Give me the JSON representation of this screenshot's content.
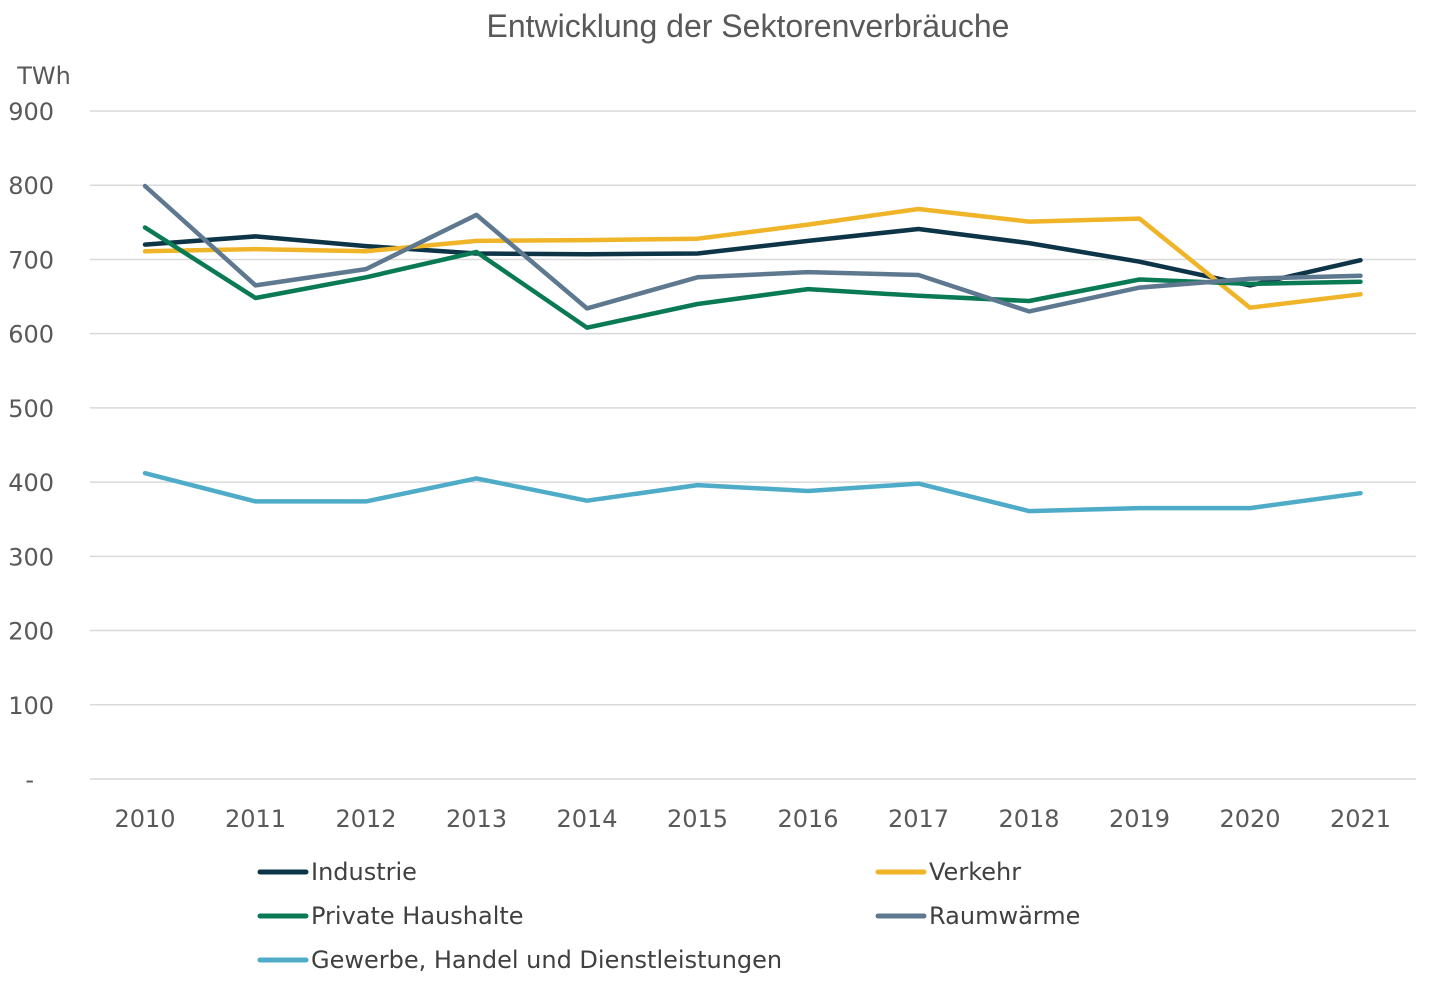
{
  "chart_data": {
    "type": "line",
    "title": "Entwicklung der Sektorenverbräuche",
    "ylabel": "TWh",
    "xlabel": "",
    "categories": [
      "2010",
      "2011",
      "2012",
      "2013",
      "2014",
      "2015",
      "2016",
      "2017",
      "2018",
      "2019",
      "2020",
      "2021"
    ],
    "ylim": [
      0,
      900
    ],
    "yticks": [
      {
        "value": 0,
        "label": "-"
      },
      {
        "value": 100,
        "label": "100"
      },
      {
        "value": 200,
        "label": "200"
      },
      {
        "value": 300,
        "label": "300"
      },
      {
        "value": 400,
        "label": "400"
      },
      {
        "value": 500,
        "label": "500"
      },
      {
        "value": 600,
        "label": "600"
      },
      {
        "value": 700,
        "label": "700"
      },
      {
        "value": 800,
        "label": "800"
      },
      {
        "value": 900,
        "label": "900"
      }
    ],
    "grid": true,
    "legend_position": "bottom",
    "series": [
      {
        "name": "Industrie",
        "color": "#0d3447",
        "values": [
          720,
          731,
          718,
          708,
          707,
          708,
          725,
          741,
          722,
          697,
          665,
          699
        ]
      },
      {
        "name": "Verkehr",
        "color": "#f0b429",
        "values": [
          711,
          714,
          711,
          725,
          726,
          728,
          747,
          768,
          751,
          755,
          635,
          653
        ]
      },
      {
        "name": "Private Haushalte",
        "color": "#0a7a55",
        "values": [
          743,
          648,
          676,
          710,
          608,
          640,
          660,
          651,
          644,
          673,
          667,
          670
        ]
      },
      {
        "name": "Raumwärme",
        "color": "#5e7890",
        "values": [
          799,
          665,
          687,
          760,
          634,
          676,
          683,
          679,
          630,
          662,
          674,
          678
        ]
      },
      {
        "name": "Gewerbe, Handel und Dienstleistungen",
        "color": "#4eacc8",
        "values": [
          412,
          374,
          374,
          405,
          375,
          396,
          388,
          398,
          361,
          365,
          365,
          385
        ]
      }
    ]
  }
}
